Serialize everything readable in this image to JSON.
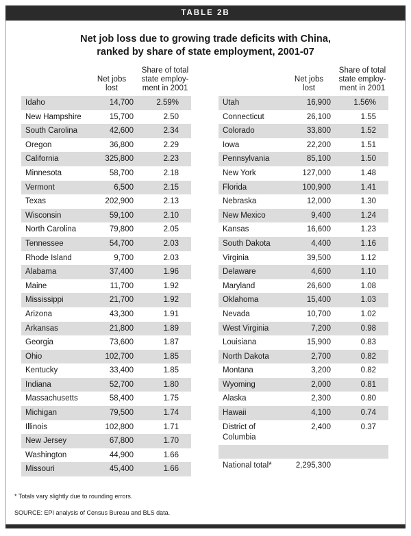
{
  "banner": "TABLE 2B",
  "title_line1": "Net job loss due to growing trade deficits with China,",
  "title_line2": "ranked by share of state employment, 2001-07",
  "headers": {
    "jobs_line1": "Net jobs",
    "jobs_line2": "lost",
    "share_line1": "Share of total",
    "share_line2": "state employ-",
    "share_line3": "ment in 2001"
  },
  "left_rows": [
    {
      "state": "Idaho",
      "jobs": "14,700",
      "share": "2.59%"
    },
    {
      "state": "New Hampshire",
      "jobs": "15,700",
      "share": "2.50"
    },
    {
      "state": "South Carolina",
      "jobs": "42,600",
      "share": "2.34"
    },
    {
      "state": "Oregon",
      "jobs": "36,800",
      "share": "2.29"
    },
    {
      "state": "California",
      "jobs": "325,800",
      "share": "2.23"
    },
    {
      "state": "Minnesota",
      "jobs": "58,700",
      "share": "2.18"
    },
    {
      "state": "Vermont",
      "jobs": "6,500",
      "share": "2.15"
    },
    {
      "state": "Texas",
      "jobs": "202,900",
      "share": "2.13"
    },
    {
      "state": "Wisconsin",
      "jobs": "59,100",
      "share": "2.10"
    },
    {
      "state": "North Carolina",
      "jobs": "79,800",
      "share": "2.05"
    },
    {
      "state": "Tennessee",
      "jobs": "54,700",
      "share": "2.03"
    },
    {
      "state": "Rhode Island",
      "jobs": "9,700",
      "share": "2.03"
    },
    {
      "state": "Alabama",
      "jobs": "37,400",
      "share": "1.96"
    },
    {
      "state": "Maine",
      "jobs": "11,700",
      "share": "1.92"
    },
    {
      "state": "Mississippi",
      "jobs": "21,700",
      "share": "1.92"
    },
    {
      "state": "Arizona",
      "jobs": "43,300",
      "share": "1.91"
    },
    {
      "state": "Arkansas",
      "jobs": "21,800",
      "share": "1.89"
    },
    {
      "state": "Georgia",
      "jobs": "73,600",
      "share": "1.87"
    },
    {
      "state": "Ohio",
      "jobs": "102,700",
      "share": "1.85"
    },
    {
      "state": "Kentucky",
      "jobs": "33,400",
      "share": "1.85"
    },
    {
      "state": "Indiana",
      "jobs": "52,700",
      "share": "1.80"
    },
    {
      "state": "Massachusetts",
      "jobs": "58,400",
      "share": "1.75"
    },
    {
      "state": "Michigan",
      "jobs": "79,500",
      "share": "1.74"
    },
    {
      "state": "Illinois",
      "jobs": "102,800",
      "share": "1.71"
    },
    {
      "state": "New Jersey",
      "jobs": "67,800",
      "share": "1.70"
    },
    {
      "state": "Washington",
      "jobs": "44,900",
      "share": "1.66"
    },
    {
      "state": "Missouri",
      "jobs": "45,400",
      "share": "1.66"
    }
  ],
  "right_rows": [
    {
      "state": "Utah",
      "jobs": "16,900",
      "share": "1.56%"
    },
    {
      "state": "Connecticut",
      "jobs": "26,100",
      "share": "1.55"
    },
    {
      "state": "Colorado",
      "jobs": "33,800",
      "share": "1.52"
    },
    {
      "state": "Iowa",
      "jobs": "22,200",
      "share": "1.51"
    },
    {
      "state": "Pennsylvania",
      "jobs": "85,100",
      "share": "1.50"
    },
    {
      "state": "New York",
      "jobs": "127,000",
      "share": "1.48"
    },
    {
      "state": "Florida",
      "jobs": "100,900",
      "share": "1.41"
    },
    {
      "state": "Nebraska",
      "jobs": "12,000",
      "share": "1.30"
    },
    {
      "state": "New Mexico",
      "jobs": "9,400",
      "share": "1.24"
    },
    {
      "state": "Kansas",
      "jobs": "16,600",
      "share": "1.23"
    },
    {
      "state": "South Dakota",
      "jobs": "4,400",
      "share": "1.16"
    },
    {
      "state": "Virginia",
      "jobs": "39,500",
      "share": "1.12"
    },
    {
      "state": "Delaware",
      "jobs": "4,600",
      "share": "1.10"
    },
    {
      "state": "Maryland",
      "jobs": "26,600",
      "share": "1.08"
    },
    {
      "state": "Oklahoma",
      "jobs": "15,400",
      "share": "1.03"
    },
    {
      "state": "Nevada",
      "jobs": "10,700",
      "share": "1.02"
    },
    {
      "state": "West Virginia",
      "jobs": "7,200",
      "share": "0.98"
    },
    {
      "state": "Louisiana",
      "jobs": "15,900",
      "share": "0.83"
    },
    {
      "state": "North Dakota",
      "jobs": "2,700",
      "share": "0.82"
    },
    {
      "state": "Montana",
      "jobs": "3,200",
      "share": "0.82"
    },
    {
      "state": "Wyoming",
      "jobs": "2,000",
      "share": "0.81"
    },
    {
      "state": "Alaska",
      "jobs": "2,300",
      "share": "0.80"
    },
    {
      "state": "Hawaii",
      "jobs": "4,100",
      "share": "0.74"
    }
  ],
  "dc_row": {
    "state_line1": "District of",
    "state_line2": "Columbia",
    "jobs": "2,400",
    "share": "0.37"
  },
  "total_row": {
    "label": "National total*",
    "jobs": "2,295,300"
  },
  "footnote": "* Totals vary slightly due to rounding errors.",
  "source": "SOURCE: EPI analysis of Census Bureau and BLS data."
}
